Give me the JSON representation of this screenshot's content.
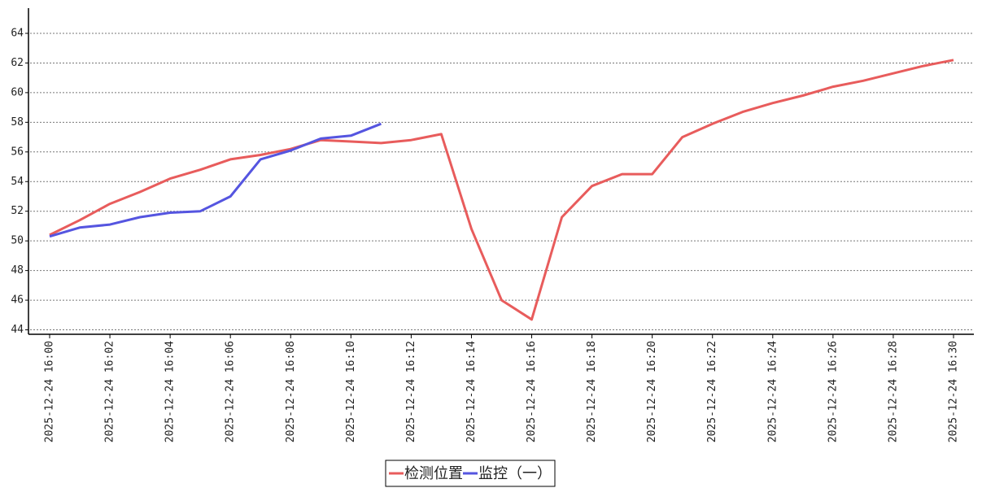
{
  "chart_data": {
    "type": "line",
    "categories": [
      "2025-12-24 16:00",
      null,
      "2025-12-24 16:02",
      null,
      "2025-12-24 16:04",
      null,
      "2025-12-24 16:06",
      null,
      "2025-12-24 16:08",
      null,
      "2025-12-24 16:10",
      null,
      "2025-12-24 16:12",
      null,
      "2025-12-24 16:14",
      null,
      "2025-12-24 16:16",
      null,
      "2025-12-24 16:18",
      null,
      "2025-12-24 16:20",
      null,
      "2025-12-24 16:22",
      null,
      "2025-12-24 16:24",
      null,
      "2025-12-24 16:26",
      null,
      "2025-12-24 16:28",
      null,
      "2025-12-24 16:30"
    ],
    "series": [
      {
        "name": "检测位置",
        "color": "#e85c5c",
        "values": [
          50.4,
          51.4,
          52.5,
          53.3,
          54.2,
          54.8,
          55.5,
          55.8,
          56.2,
          56.8,
          56.7,
          56.6,
          56.8,
          57.2,
          50.8,
          46.0,
          44.7,
          51.6,
          53.7,
          54.5,
          54.5,
          57.0,
          57.9,
          58.7,
          59.3,
          59.8,
          60.4,
          60.8,
          61.3,
          61.8,
          62.2
        ]
      },
      {
        "name": "监控（一）",
        "color": "#5555e0",
        "values": [
          50.3,
          50.9,
          51.1,
          51.6,
          51.9,
          52.0,
          53.0,
          55.5,
          56.1,
          56.9,
          57.1,
          57.9,
          null,
          null,
          null,
          null,
          null,
          null,
          null,
          null,
          null,
          null,
          null,
          null,
          null,
          null,
          null,
          null,
          null,
          null,
          null
        ]
      }
    ],
    "ylim": [
      43.7,
      65.7
    ],
    "yticks": [
      44,
      46,
      48,
      50,
      52,
      54,
      56,
      58,
      60,
      62,
      64
    ],
    "grid": true,
    "legend": "bottom"
  }
}
